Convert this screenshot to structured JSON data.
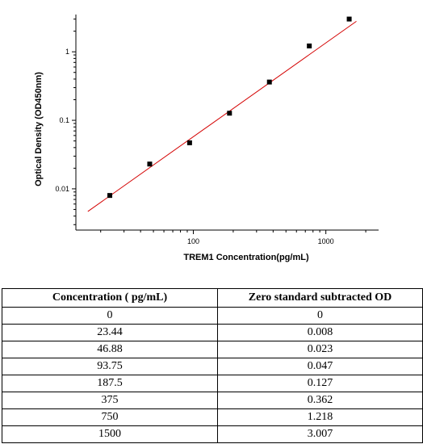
{
  "chart_data": {
    "type": "scatter",
    "xscale": "log",
    "yscale": "log",
    "xlabel": "TREM1  Concentration(pg/mL)",
    "ylabel": "Optical Density (OD450nm)",
    "xlim": [
      13,
      2500
    ],
    "ylim": [
      0.0025,
      3.5
    ],
    "x_ticks": [
      {
        "value": 100,
        "label": "100"
      },
      {
        "value": 1000,
        "label": "1000"
      }
    ],
    "y_ticks": [
      {
        "value": 0.01,
        "label": "0.01"
      },
      {
        "value": 0.1,
        "label": "0.1"
      },
      {
        "value": 1,
        "label": "1"
      }
    ],
    "points": [
      {
        "x": 23.44,
        "y": 0.008
      },
      {
        "x": 46.88,
        "y": 0.023
      },
      {
        "x": 93.75,
        "y": 0.047
      },
      {
        "x": 187.5,
        "y": 0.127
      },
      {
        "x": 375,
        "y": 0.362
      },
      {
        "x": 750,
        "y": 1.218
      },
      {
        "x": 1500,
        "y": 3.007
      }
    ],
    "fit_line": {
      "color": "#d40000",
      "x_range": [
        16,
        1700
      ],
      "slope": 1.37,
      "intercept_log10": -3.98
    },
    "marker_color": "#000000",
    "grid": false
  },
  "table": {
    "headers": [
      "Concentration ( pg/mL)",
      "Zero standard subtracted OD"
    ],
    "rows": [
      [
        "0",
        "0"
      ],
      [
        "23.44",
        "0.008"
      ],
      [
        "46.88",
        "0.023"
      ],
      [
        "93.75",
        "0.047"
      ],
      [
        "187.5",
        "0.127"
      ],
      [
        "375",
        "0.362"
      ],
      [
        "750",
        "1.218"
      ],
      [
        "1500",
        "3.007"
      ]
    ]
  }
}
